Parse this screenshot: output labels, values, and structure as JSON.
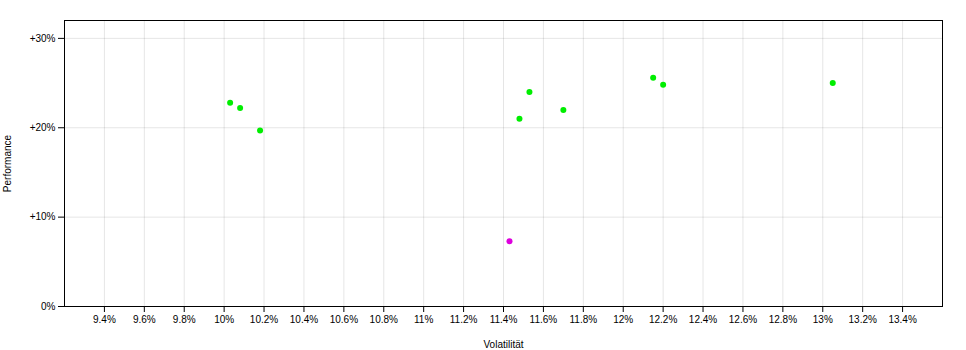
{
  "chart_data": {
    "type": "scatter",
    "xlabel": "Volatilität",
    "ylabel": "Performance",
    "xlim": [
      0.092,
      0.136
    ],
    "ylim": [
      0.0,
      0.32
    ],
    "xticks": [
      {
        "value": 0.094,
        "label": "9.4%"
      },
      {
        "value": 0.096,
        "label": "9.6%"
      },
      {
        "value": 0.098,
        "label": "9.8%"
      },
      {
        "value": 0.1,
        "label": "10%"
      },
      {
        "value": 0.102,
        "label": "10.2%"
      },
      {
        "value": 0.104,
        "label": "10.4%"
      },
      {
        "value": 0.106,
        "label": "10.6%"
      },
      {
        "value": 0.108,
        "label": "10.8%"
      },
      {
        "value": 0.11,
        "label": "11%"
      },
      {
        "value": 0.112,
        "label": "11.2%"
      },
      {
        "value": 0.114,
        "label": "11.4%"
      },
      {
        "value": 0.116,
        "label": "11.6%"
      },
      {
        "value": 0.118,
        "label": "11.8%"
      },
      {
        "value": 0.12,
        "label": "12%"
      },
      {
        "value": 0.122,
        "label": "12.2%"
      },
      {
        "value": 0.124,
        "label": "12.4%"
      },
      {
        "value": 0.126,
        "label": "12.6%"
      },
      {
        "value": 0.128,
        "label": "12.8%"
      },
      {
        "value": 0.13,
        "label": "13%"
      },
      {
        "value": 0.132,
        "label": "13.2%"
      },
      {
        "value": 0.134,
        "label": "13.4%"
      }
    ],
    "yticks": [
      {
        "value": 0.0,
        "label": "0%"
      },
      {
        "value": 0.1,
        "label": "+10%"
      },
      {
        "value": 0.2,
        "label": "+20%"
      },
      {
        "value": 0.3,
        "label": "+30%"
      }
    ],
    "grid": true,
    "series": [
      {
        "color": "#00ee00",
        "x": [
          0.1003,
          0.1008,
          0.1018,
          0.1148,
          0.1153,
          0.117,
          0.1215,
          0.122,
          0.1305
        ],
        "values": [
          0.228,
          0.222,
          0.197,
          0.21,
          0.24,
          0.22,
          0.256,
          0.248,
          0.25
        ]
      },
      {
        "color": "#dd00dd",
        "x": [
          0.1143
        ],
        "values": [
          0.073
        ]
      }
    ]
  }
}
